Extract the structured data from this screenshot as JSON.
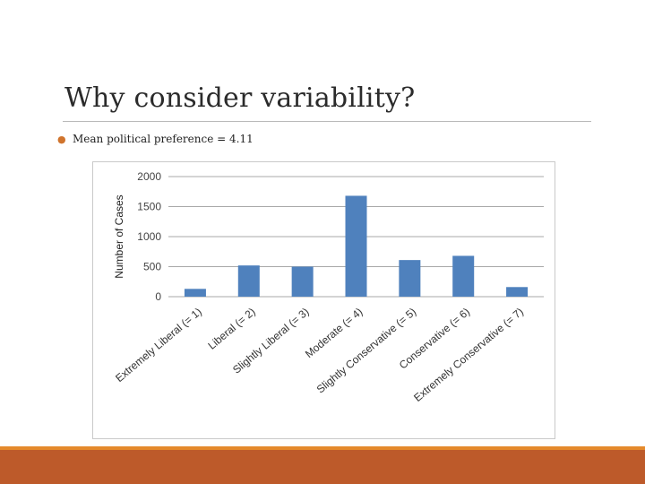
{
  "slide": {
    "title": "Why consider variability?",
    "bullet": "Mean political preference = 4.11"
  },
  "colors": {
    "bar": "#4f81bd",
    "bullet": "#d0742d",
    "footer_band": "#bd5a2a",
    "footer_accent": "#e58a2c"
  },
  "chart_data": {
    "type": "bar",
    "title": "",
    "xlabel": "",
    "ylabel": "Number of Cases",
    "ylim": [
      0,
      2000
    ],
    "yticks": [
      0,
      500,
      1000,
      1500,
      2000
    ],
    "categories": [
      "Extremely Liberal (= 1)",
      "Liberal (= 2)",
      "Slightly Liberal (= 3)",
      "Moderate (= 4)",
      "Slightly Conservative (= 5)",
      "Conservative (= 6)",
      "Extremely Conservative (= 7)"
    ],
    "values": [
      130,
      520,
      500,
      1680,
      610,
      680,
      160
    ],
    "grid": true,
    "legend": "none"
  }
}
